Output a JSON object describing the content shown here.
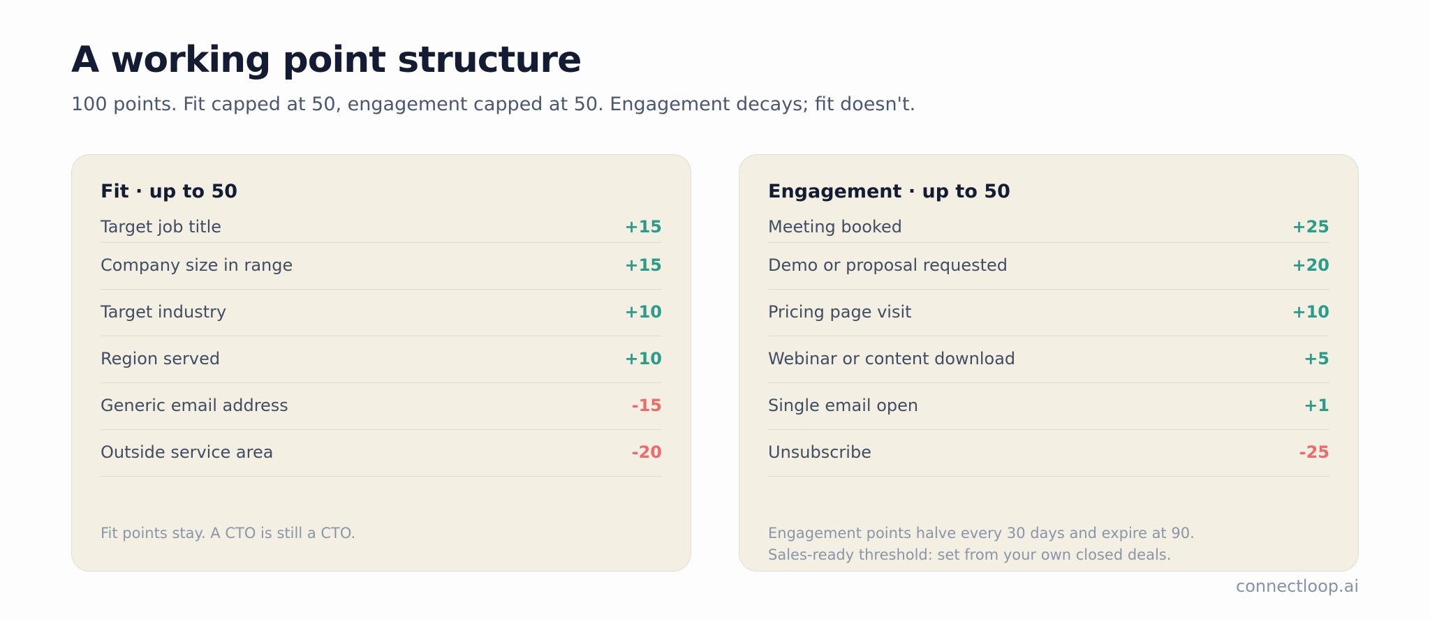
{
  "header": {
    "title": "A working point structure",
    "subtitle": "100 points. Fit capped at 50, engagement capped at 50. Engagement decays; fit doesn't."
  },
  "fit": {
    "heading": "Fit · up to 50",
    "rows": [
      {
        "label": "Target job title",
        "value": "+15",
        "sign": "pos"
      },
      {
        "label": "Company size in range",
        "value": "+15",
        "sign": "pos"
      },
      {
        "label": "Target industry",
        "value": "+10",
        "sign": "pos"
      },
      {
        "label": "Region served",
        "value": "+10",
        "sign": "pos"
      },
      {
        "label": "Generic email address",
        "value": "-15",
        "sign": "neg"
      },
      {
        "label": "Outside service area",
        "value": "-20",
        "sign": "neg"
      }
    ],
    "note_lines": [
      "Fit points stay. A CTO is still a CTO."
    ]
  },
  "engagement": {
    "heading": "Engagement · up to 50",
    "rows": [
      {
        "label": "Meeting booked",
        "value": "+25",
        "sign": "pos"
      },
      {
        "label": "Demo or proposal requested",
        "value": "+20",
        "sign": "pos"
      },
      {
        "label": "Pricing page visit",
        "value": "+10",
        "sign": "pos"
      },
      {
        "label": "Webinar or content download",
        "value": "+5",
        "sign": "pos"
      },
      {
        "label": "Single email open",
        "value": "+1",
        "sign": "pos"
      },
      {
        "label": "Unsubscribe",
        "value": "-25",
        "sign": "neg"
      }
    ],
    "note_lines": [
      "Engagement points halve every 30 days and expire at 90.",
      "Sales-ready threshold: set from your own closed deals."
    ]
  },
  "footer": {
    "brand": "connectloop.ai"
  },
  "colors": {
    "positive": "#2a9d8a",
    "negative": "#ef6b6b",
    "card_background": "#f3efe3",
    "title": "#131c33"
  }
}
